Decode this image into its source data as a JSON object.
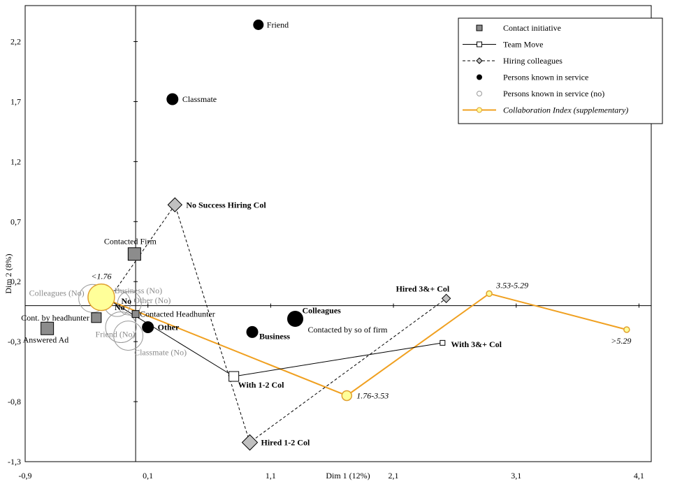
{
  "chart_data": {
    "type": "scatter",
    "xlabel": "Dim 1 (12%)",
    "ylabel": "Dim 2 (8%)",
    "xlim": [
      -0.9,
      4.2
    ],
    "ylim": [
      -1.3,
      2.5
    ],
    "xticks": [
      "-0,9",
      "0,1",
      "1,1",
      "2,1",
      "3,1",
      "4,1"
    ],
    "xtick_values": [
      -0.9,
      0.1,
      1.1,
      2.1,
      3.1,
      4.1
    ],
    "yticks": [
      "2,2",
      "1,7",
      "1,2",
      "0,7",
      "0,2",
      "-0,3",
      "-0,8",
      "-1,3"
    ],
    "ytick_values": [
      2.2,
      1.7,
      1.2,
      0.7,
      0.2,
      -0.3,
      -0.8,
      -1.3
    ],
    "legend": {
      "placement": "top-right",
      "entries": [
        "Contact initiative",
        "Team Move",
        "Hiring colleagues",
        "Persons known in service",
        "Persons known in service (no)",
        "Collaboration Index (supplementary)"
      ]
    },
    "colors": {
      "contact": "#8c8c8c",
      "hiring": "#c0c0c0",
      "known": "#000000",
      "known_no": "#999999",
      "collab_line": "#f0a020",
      "collab_fill": "#ffff99",
      "collab_edge": "#e0a030"
    },
    "contact_initiative": [
      {
        "label": "Contacted Firm",
        "x": -0.01,
        "y": 0.43
      },
      {
        "label": "Contacted Headhunter",
        "x": 0.0,
        "y": -0.07
      },
      {
        "label": "Cont. by headhunter",
        "x": -0.32,
        "y": -0.1
      },
      {
        "label": "Answered Ad",
        "x": -0.72,
        "y": -0.19
      },
      {
        "label": "Contacted by so of firm",
        "x": 1.3,
        "y": -0.13
      }
    ],
    "team_move": [
      {
        "label": "No",
        "x": -0.22,
        "y": 0.05
      },
      {
        "label": "With 1-2 Col",
        "x": 0.8,
        "y": -0.59
      },
      {
        "label": "With 3&+ Col",
        "x": 2.5,
        "y": -0.31
      }
    ],
    "hiring_colleagues": [
      {
        "label": "No",
        "x": -0.24,
        "y": 0.02
      },
      {
        "label": "Hired 1-2 Col",
        "x": 0.93,
        "y": -1.14
      },
      {
        "label": "No Success Hiring Col",
        "x": 0.32,
        "y": 0.84
      },
      {
        "label": "Hired 3&+ Col",
        "x": 2.53,
        "y": 0.06
      }
    ],
    "persons_known": [
      {
        "label": "Friend",
        "x": 1.0,
        "y": 2.34
      },
      {
        "label": "Classmate",
        "x": 0.3,
        "y": 1.72
      },
      {
        "label": "Colleagues",
        "x": 1.3,
        "y": -0.11
      },
      {
        "label": "Business",
        "x": 0.95,
        "y": -0.22
      },
      {
        "label": "Other",
        "x": 0.1,
        "y": -0.18
      }
    ],
    "persons_known_no": [
      {
        "label": "Colleagues (No)",
        "x": -0.35,
        "y": 0.06
      },
      {
        "label": "Business (No)",
        "x": -0.15,
        "y": 0.02
      },
      {
        "label": "Other (No)",
        "x": -0.05,
        "y": 0.02
      },
      {
        "label": "Friend (No)",
        "x": -0.12,
        "y": -0.18
      },
      {
        "label": "Classmate (No)",
        "x": -0.06,
        "y": -0.25
      }
    ],
    "collaboration_index": [
      {
        "label": "<1.76",
        "x": -0.28,
        "y": 0.07
      },
      {
        "label": "1.76-3.53",
        "x": 1.72,
        "y": -0.75
      },
      {
        "label": "3.53-5.29",
        "x": 2.88,
        "y": 0.1
      },
      {
        "label": ">5.29",
        "x": 4.0,
        "y": -0.2
      }
    ]
  }
}
